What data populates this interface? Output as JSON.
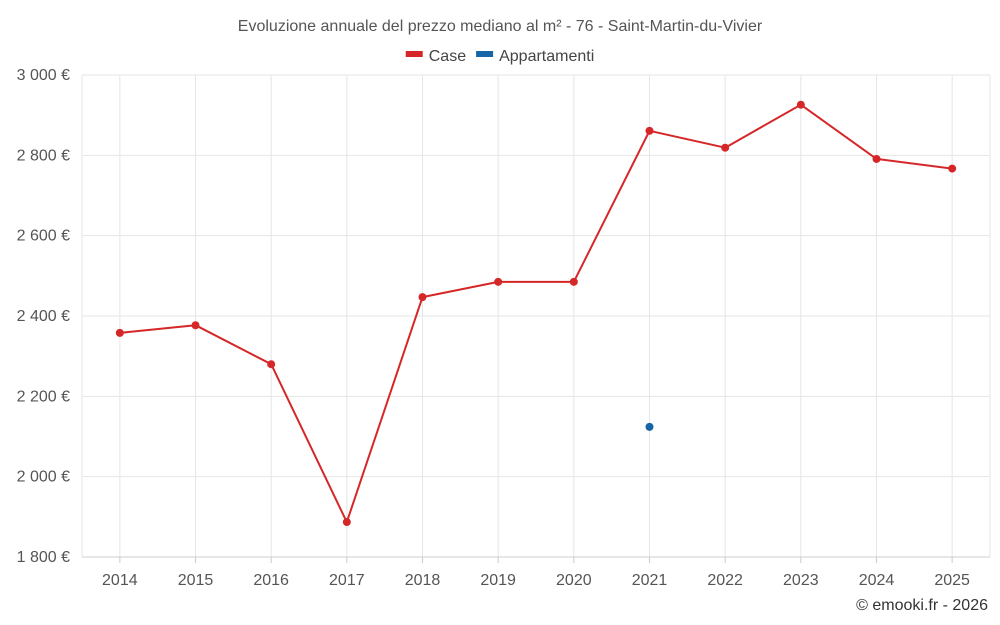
{
  "chart_data": {
    "type": "line",
    "title": "Evoluzione annuale del prezzo mediano al m² - 76 - Saint-Martin-du-Vivier",
    "categories": [
      "2014",
      "2015",
      "2016",
      "2017",
      "2018",
      "2019",
      "2020",
      "2021",
      "2022",
      "2023",
      "2024",
      "2025"
    ],
    "series": [
      {
        "name": "Case",
        "color": "#d62728",
        "values": [
          2358,
          2377,
          2280,
          1887,
          2447,
          2485,
          2485,
          2861,
          2819,
          2926,
          2791,
          2767
        ]
      },
      {
        "name": "Appartamenti",
        "color": "#1565a7",
        "values": [
          null,
          null,
          null,
          null,
          null,
          null,
          null,
          2124,
          null,
          null,
          null,
          null
        ]
      }
    ],
    "ylim": [
      1800,
      3000
    ],
    "yticks": [
      1800,
      2000,
      2200,
      2400,
      2600,
      2800,
      3000
    ],
    "ytick_labels": [
      "1 800 €",
      "2 000 €",
      "2 200 €",
      "2 400 €",
      "2 600 €",
      "2 800 €",
      "3 000 €"
    ],
    "xlabel": "",
    "ylabel": "",
    "grid": true,
    "legend_position": "top-center"
  },
  "credit": "© emooki.fr - 2026"
}
